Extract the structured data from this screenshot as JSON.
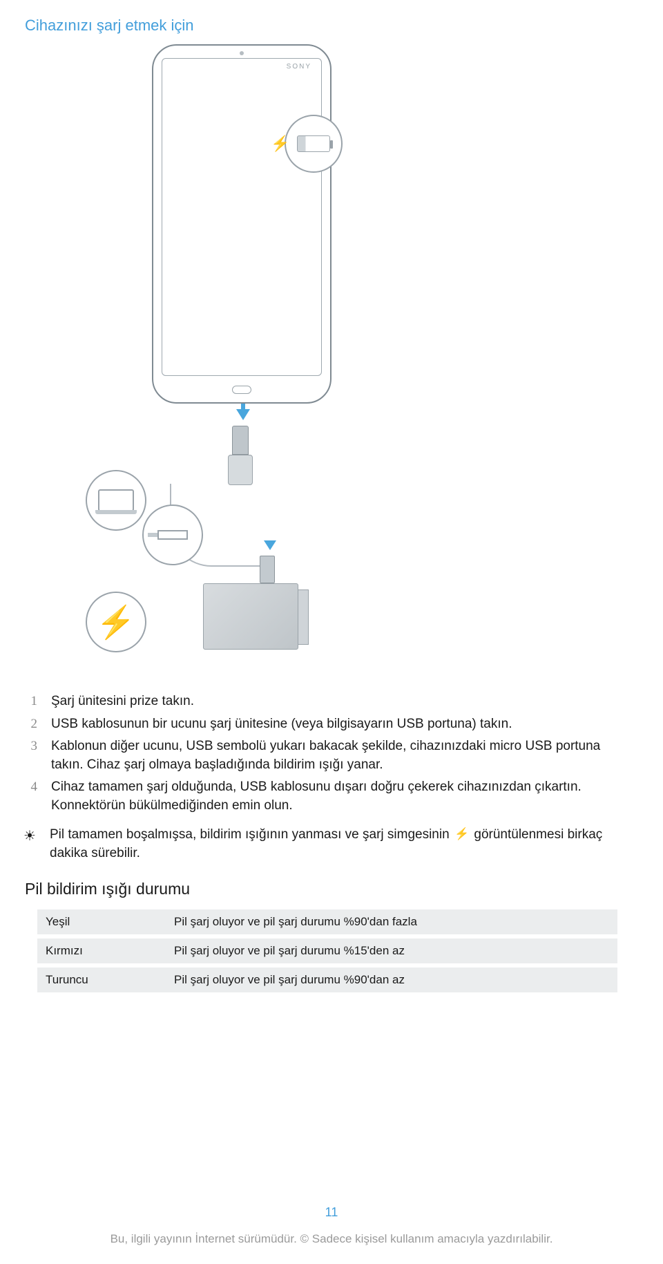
{
  "section_title": "Cihazınızı şarj etmek için",
  "phone_brand": "SONY",
  "steps": [
    {
      "num": "1",
      "text": "Şarj ünitesini prize takın."
    },
    {
      "num": "2",
      "text": "USB kablosunun bir ucunu şarj ünitesine (veya bilgisayarın USB portuna) takın."
    },
    {
      "num": "3",
      "text": "Kablonun diğer ucunu, USB sembolü yukarı bakacak şekilde, cihazınızdaki micro USB portuna takın. Cihaz şarj olmaya başladığında bildirim ışığı yanar."
    },
    {
      "num": "4",
      "text": "Cihaz tamamen şarj olduğunda, USB kablosunu dışarı doğru çekerek cihazınızdan çıkartın. Konnektörün bükülmediğinden emin olun."
    }
  ],
  "tip_before": "Pil tamamen boşalmışsa, bildirim ışığının yanması ve şarj simgesinin",
  "tip_after": "görüntülenmesi birkaç dakika sürebilir.",
  "subheading": "Pil bildirim ışığı durumu",
  "status_rows": [
    {
      "label": "Yeşil",
      "desc": "Pil şarj oluyor ve pil şarj durumu %90'dan fazla"
    },
    {
      "label": "Kırmızı",
      "desc": "Pil şarj oluyor ve pil şarj durumu %15'den az"
    },
    {
      "label": "Turuncu",
      "desc": "Pil şarj oluyor ve pil şarj durumu %90'dan az"
    }
  ],
  "page_number": "11",
  "footer_text": "Bu, ilgili yayının İnternet sürümüdür. © Sadece kişisel kullanım amacıyla yazdırılabilir.",
  "colors": {
    "accent": "#429edb",
    "text": "#1a1a1a",
    "muted": "#8a8a8a",
    "row_bg": "#ebedee",
    "footer": "#9a9a9a",
    "outline": "#9aa3aa"
  }
}
